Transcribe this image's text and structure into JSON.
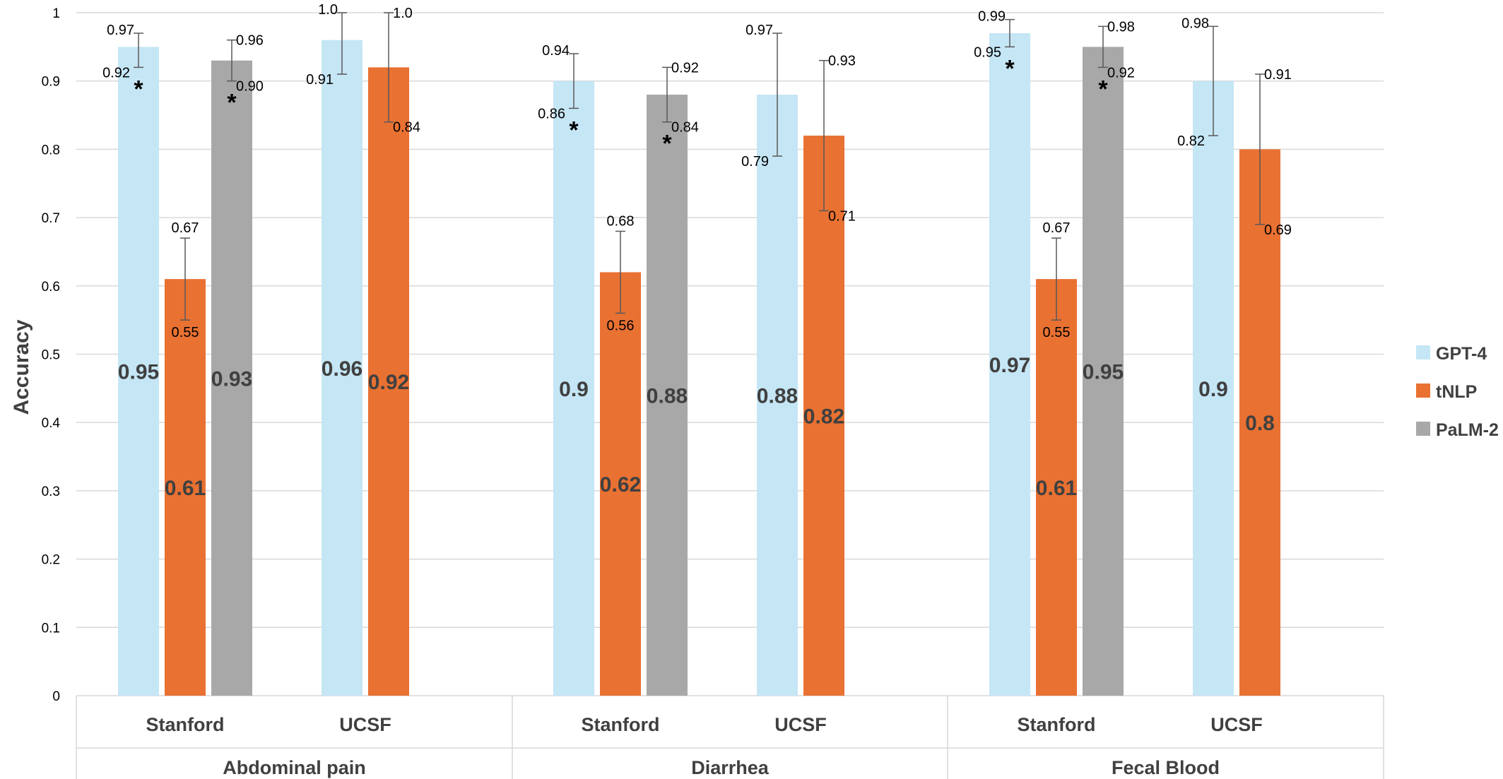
{
  "chart_data": {
    "type": "bar",
    "ylabel": "Accuracy",
    "ylim": [
      0,
      1
    ],
    "yticks": [
      "0",
      "0.1",
      "0.2",
      "0.3",
      "0.4",
      "0.5",
      "0.6",
      "0.7",
      "0.8",
      "0.9",
      "1"
    ],
    "grid": true,
    "legend_position": "right",
    "groups": [
      {
        "label": "Abdominal pain",
        "sites": [
          {
            "label": "Stanford",
            "bars": [
              {
                "series": "GPT-4",
                "value": 0.95,
                "label": "0.95",
                "err_high": "0.97",
                "err_low": "0.92",
                "star": true
              },
              {
                "series": "tNLP",
                "value": 0.61,
                "label": "0.61",
                "err_high": "0.67",
                "err_low": "0.55",
                "star": false
              },
              {
                "series": "PaLM-2",
                "value": 0.93,
                "label": "0.93",
                "err_high": "0.96",
                "err_low": "0.90",
                "star": true
              }
            ]
          },
          {
            "label": "UCSF",
            "bars": [
              {
                "series": "GPT-4",
                "value": 0.96,
                "label": "0.96",
                "err_high": "1.0",
                "err_low": "0.91",
                "star": false
              },
              {
                "series": "tNLP",
                "value": 0.92,
                "label": "0.92",
                "err_high": "1.0",
                "err_low": "0.84",
                "star": false
              }
            ]
          }
        ]
      },
      {
        "label": "Diarrhea",
        "sites": [
          {
            "label": "Stanford",
            "bars": [
              {
                "series": "GPT-4",
                "value": 0.9,
                "label": "0.9",
                "err_high": "0.94",
                "err_low": "0.86",
                "star": true
              },
              {
                "series": "tNLP",
                "value": 0.62,
                "label": "0.62",
                "err_high": "0.68",
                "err_low": "0.56",
                "star": false
              },
              {
                "series": "PaLM-2",
                "value": 0.88,
                "label": "0.88",
                "err_high": "0.92",
                "err_low": "0.84",
                "star": true
              }
            ]
          },
          {
            "label": "UCSF",
            "bars": [
              {
                "series": "GPT-4",
                "value": 0.88,
                "label": "0.88",
                "err_high": "0.97",
                "err_low": "0.79",
                "star": false
              },
              {
                "series": "tNLP",
                "value": 0.82,
                "label": "0.82",
                "err_high": "0.93",
                "err_low": "0.71",
                "star": false
              }
            ]
          }
        ]
      },
      {
        "label": "Fecal Blood",
        "sites": [
          {
            "label": "Stanford",
            "bars": [
              {
                "series": "GPT-4",
                "value": 0.97,
                "label": "0.97",
                "err_high": "0.99",
                "err_low": "0.95",
                "star": true
              },
              {
                "series": "tNLP",
                "value": 0.61,
                "label": "0.61",
                "err_high": "0.67",
                "err_low": "0.55",
                "star": false
              },
              {
                "series": "PaLM-2",
                "value": 0.95,
                "label": "0.95",
                "err_high": "0.98",
                "err_low": "0.92",
                "star": true
              }
            ]
          },
          {
            "label": "UCSF",
            "bars": [
              {
                "series": "GPT-4",
                "value": 0.9,
                "label": "0.9",
                "err_high": "0.98",
                "err_low": "0.82",
                "star": false
              },
              {
                "series": "tNLP",
                "value": 0.8,
                "label": "0.8",
                "err_high": "0.91",
                "err_low": "0.69",
                "star": false
              }
            ]
          }
        ]
      }
    ],
    "series": [
      {
        "name": "GPT-4",
        "color": "#c5e6f5"
      },
      {
        "name": "tNLP",
        "color": "#e97132"
      },
      {
        "name": "PaLM-2",
        "color": "#a8a8a8"
      }
    ],
    "star_symbol": "*"
  }
}
